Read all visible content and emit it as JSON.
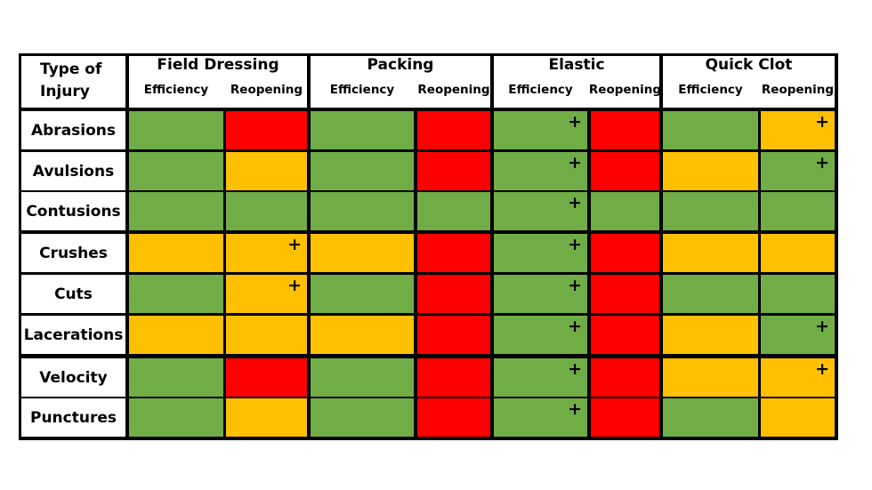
{
  "chart_data": {
    "type": "table",
    "corner_label": [
      "Type of",
      "Injury"
    ],
    "groups": [
      {
        "name": "Field Dressing",
        "subs": [
          "Efficiency",
          "Reopening"
        ]
      },
      {
        "name": "Packing",
        "subs": [
          "Efficiency",
          "Reopening"
        ]
      },
      {
        "name": "Elastic",
        "subs": [
          "Efficiency",
          "Reopening"
        ]
      },
      {
        "name": "Quick Clot",
        "subs": [
          "Efficiency",
          "Reopening"
        ]
      }
    ],
    "rows": [
      {
        "name": "Abrasions",
        "cells": [
          "green",
          "red",
          "green",
          "red",
          "green+",
          "red",
          "green",
          "yellow+"
        ]
      },
      {
        "name": "Avulsions",
        "cells": [
          "green",
          "yellow",
          "green",
          "red",
          "green+",
          "red",
          "yellow",
          "green+"
        ]
      },
      {
        "name": "Contusions",
        "cells": [
          "green",
          "green",
          "green",
          "green",
          "green+",
          "green",
          "green",
          "green"
        ]
      },
      {
        "name": "Crushes",
        "cells": [
          "yellow",
          "yellow+",
          "yellow",
          "red",
          "green+",
          "red",
          "yellow",
          "yellow"
        ]
      },
      {
        "name": "Cuts",
        "cells": [
          "green",
          "yellow+",
          "green",
          "red",
          "green+",
          "red",
          "green",
          "green"
        ]
      },
      {
        "name": "Lacerations",
        "cells": [
          "yellow",
          "yellow",
          "yellow",
          "red",
          "green+",
          "red",
          "yellow",
          "green+"
        ]
      },
      {
        "name": "Velocity",
        "cells": [
          "green",
          "red",
          "green",
          "red",
          "green+",
          "red",
          "yellow",
          "yellow+"
        ]
      },
      {
        "name": "Punctures",
        "cells": [
          "green",
          "yellow",
          "green",
          "red",
          "green+",
          "red",
          "green",
          "yellow"
        ]
      }
    ],
    "marker_symbol": "+",
    "colors": {
      "green": "#70AD47",
      "yellow": "#FFC000",
      "red": "#FF0000",
      "border": "#000000"
    }
  }
}
